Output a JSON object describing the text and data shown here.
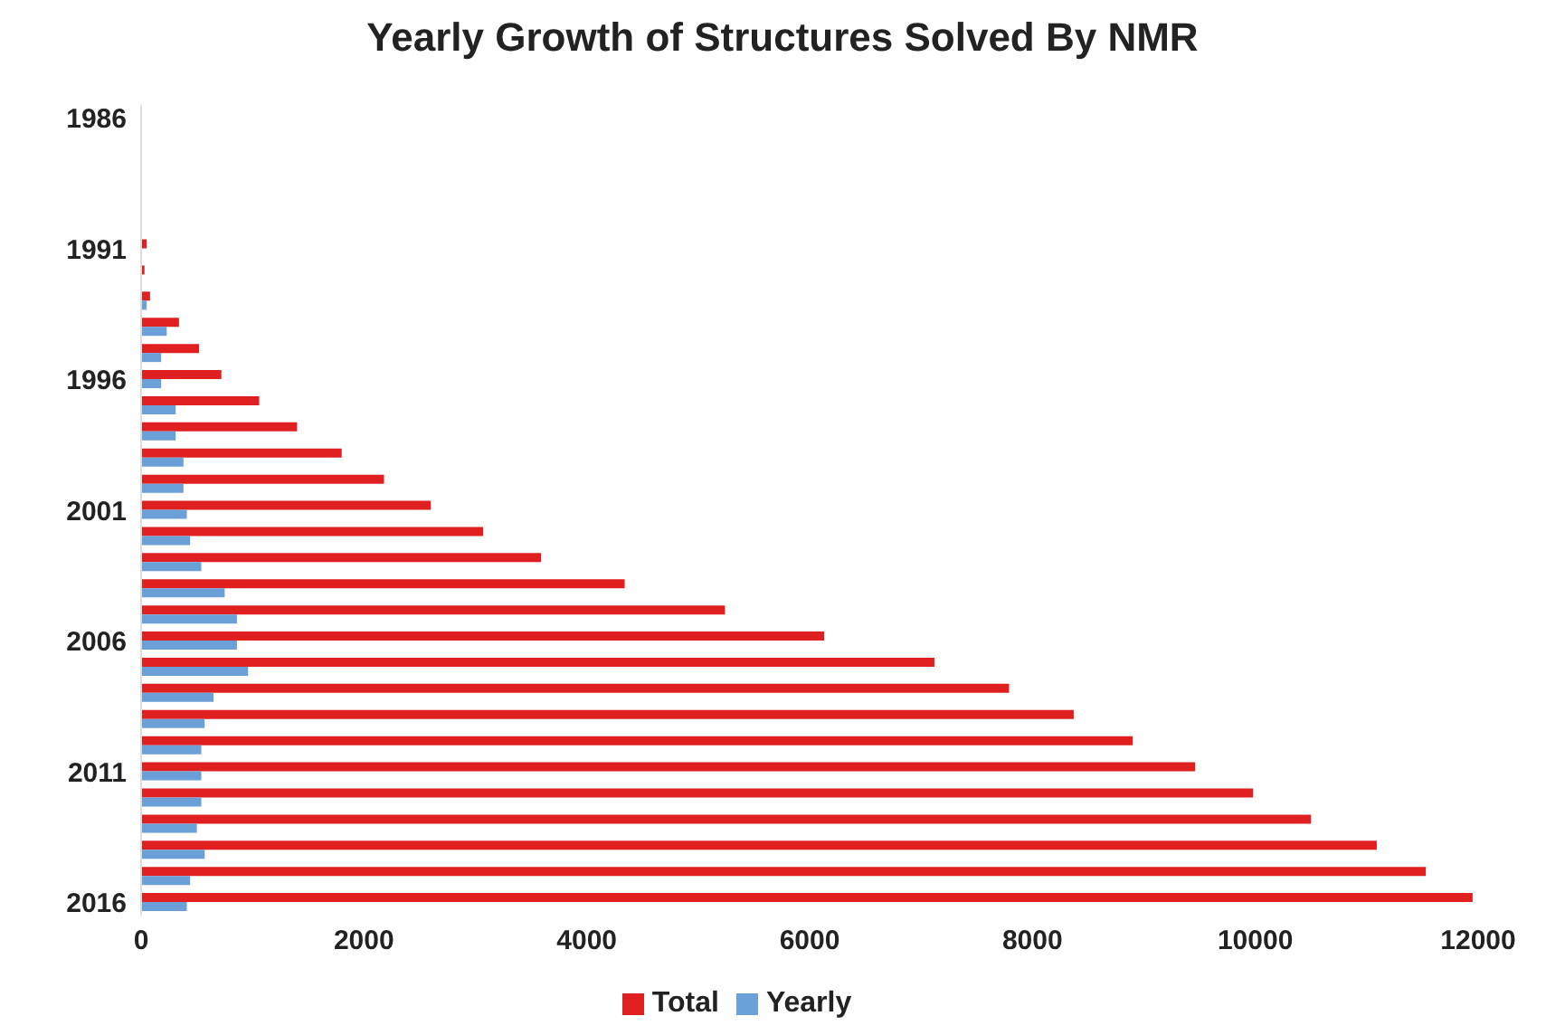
{
  "chart_data": {
    "type": "bar",
    "orientation": "horizontal",
    "title": "Yearly Growth of Structures Solved By NMR",
    "categories": [
      "1986",
      null,
      null,
      null,
      null,
      "1991",
      null,
      null,
      null,
      null,
      "1996",
      null,
      null,
      null,
      null,
      "2001",
      null,
      null,
      null,
      null,
      "2006",
      null,
      null,
      null,
      null,
      "2011",
      null,
      null,
      null,
      null,
      "2016"
    ],
    "series": [
      {
        "name": "Total",
        "color": "#e02020",
        "values": [
          0,
          0,
          0,
          0,
          0,
          50,
          30,
          80,
          340,
          520,
          720,
          1060,
          1400,
          1800,
          2180,
          2600,
          3070,
          3590,
          4340,
          5240,
          6130,
          7120,
          7790,
          8370,
          8900,
          9460,
          9980,
          10500,
          11090,
          11530,
          11950
        ]
      },
      {
        "name": "Yearly",
        "color": "#6a9fd8",
        "values": [
          0,
          0,
          0,
          0,
          0,
          null,
          null,
          50,
          230,
          180,
          180,
          310,
          310,
          380,
          380,
          410,
          440,
          540,
          750,
          860,
          860,
          960,
          650,
          570,
          540,
          540,
          540,
          500,
          570,
          440,
          410
        ]
      }
    ],
    "xlim": [
      0,
      12000
    ],
    "xticks": [
      0,
      2000,
      4000,
      6000,
      8000,
      10000,
      12000
    ],
    "legend": "bottom"
  }
}
